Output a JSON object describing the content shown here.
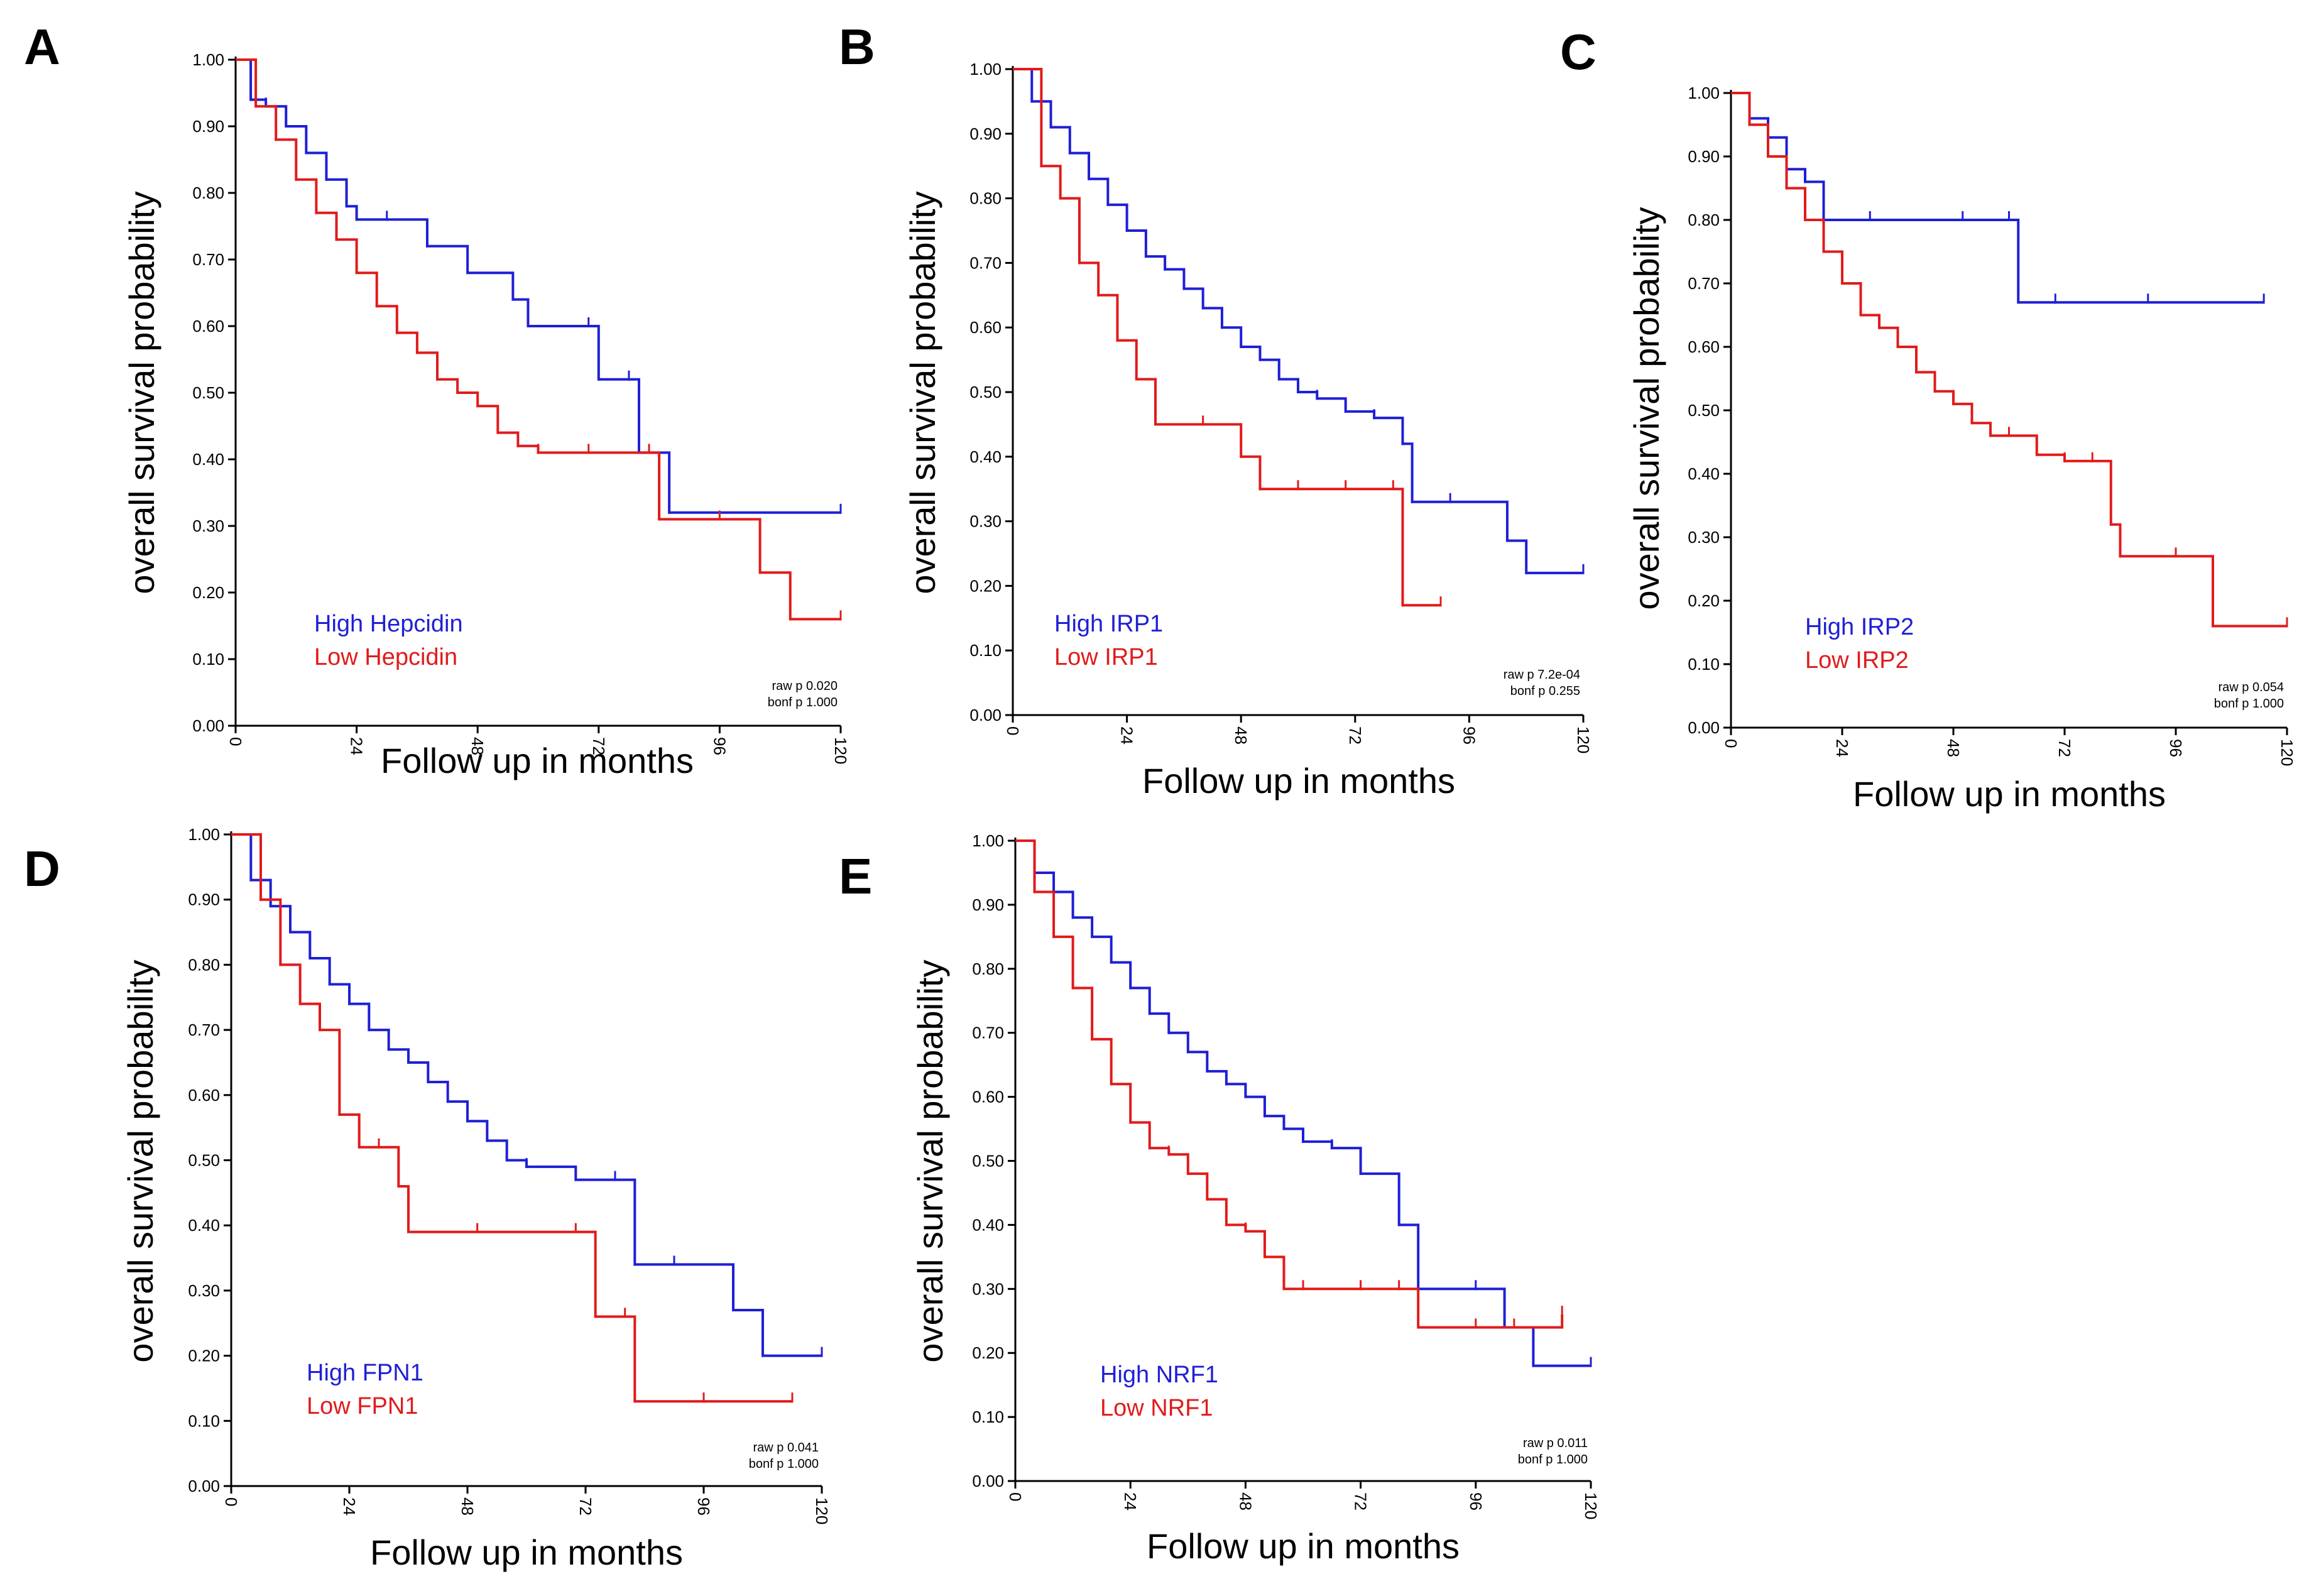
{
  "colors": {
    "high": "#1f1fd6",
    "low": "#e11b1b",
    "axis": "#000000"
  },
  "chart_data": [
    {
      "panel": "A",
      "type": "line",
      "subtype": "kaplan-meier",
      "xlabel": "Follow up in months",
      "ylabel": "overall survival probability",
      "xticks": [
        0,
        24,
        48,
        72,
        96,
        120
      ],
      "yticks": [
        "0.00",
        "0.10",
        "0.20",
        "0.30",
        "0.40",
        "0.50",
        "0.60",
        "0.70",
        "0.80",
        "0.90",
        "1.00"
      ],
      "xlim": [
        0,
        120
      ],
      "ylim": [
        0,
        1
      ],
      "legend": {
        "high": "High Hepcidin",
        "low": "Low Hepcidin"
      },
      "pvalues": {
        "raw": "raw p 0.020",
        "bonf": "bonf p 1.000"
      },
      "series": [
        {
          "name": "High Hepcidin",
          "color": "high",
          "x": [
            0,
            3,
            6,
            10,
            14,
            18,
            22,
            24,
            30,
            38,
            46,
            55,
            58,
            70,
            72,
            78,
            80,
            86,
            120
          ],
          "y": [
            1.0,
            0.94,
            0.93,
            0.9,
            0.86,
            0.82,
            0.78,
            0.76,
            0.76,
            0.72,
            0.68,
            0.64,
            0.6,
            0.6,
            0.52,
            0.52,
            0.41,
            0.32,
            0.32
          ]
        },
        {
          "name": "Low Hepcidin",
          "color": "low",
          "x": [
            0,
            4,
            8,
            12,
            16,
            20,
            24,
            28,
            32,
            36,
            40,
            44,
            48,
            52,
            56,
            60,
            70,
            82,
            84,
            96,
            104,
            110,
            120
          ],
          "y": [
            1.0,
            0.93,
            0.88,
            0.82,
            0.77,
            0.73,
            0.68,
            0.63,
            0.59,
            0.56,
            0.52,
            0.5,
            0.48,
            0.44,
            0.42,
            0.41,
            0.41,
            0.41,
            0.31,
            0.31,
            0.23,
            0.16,
            0.16
          ]
        }
      ]
    },
    {
      "panel": "B",
      "type": "line",
      "subtype": "kaplan-meier",
      "xlabel": "Follow up in months",
      "ylabel": "overall survival probability",
      "xticks": [
        0,
        24,
        48,
        72,
        96,
        120
      ],
      "yticks": [
        "0.00",
        "0.10",
        "0.20",
        "0.30",
        "0.40",
        "0.50",
        "0.60",
        "0.70",
        "0.80",
        "0.90",
        "1.00"
      ],
      "xlim": [
        0,
        120
      ],
      "ylim": [
        0,
        1
      ],
      "legend": {
        "high": "High IRP1",
        "low": "Low IRP1"
      },
      "pvalues": {
        "raw": "raw p 7.2e-04",
        "bonf": "bonf p 0.255"
      },
      "series": [
        {
          "name": "High IRP1",
          "color": "high",
          "x": [
            0,
            4,
            8,
            12,
            16,
            20,
            24,
            28,
            32,
            36,
            40,
            44,
            48,
            52,
            56,
            60,
            64,
            70,
            76,
            82,
            84,
            92,
            104,
            108,
            120
          ],
          "y": [
            1.0,
            0.95,
            0.91,
            0.87,
            0.83,
            0.79,
            0.75,
            0.71,
            0.69,
            0.66,
            0.63,
            0.6,
            0.57,
            0.55,
            0.52,
            0.5,
            0.49,
            0.47,
            0.46,
            0.42,
            0.33,
            0.33,
            0.27,
            0.22,
            0.22
          ]
        },
        {
          "name": "Low IRP1",
          "color": "low",
          "x": [
            0,
            6,
            10,
            14,
            18,
            22,
            26,
            30,
            40,
            48,
            52,
            60,
            70,
            80,
            82,
            90
          ],
          "y": [
            1.0,
            0.85,
            0.8,
            0.7,
            0.65,
            0.58,
            0.52,
            0.45,
            0.45,
            0.4,
            0.35,
            0.35,
            0.35,
            0.35,
            0.17,
            0.17
          ]
        }
      ]
    },
    {
      "panel": "C",
      "type": "line",
      "subtype": "kaplan-meier",
      "xlabel": "Follow up in months",
      "ylabel": "overall survival probability",
      "xticks": [
        0,
        24,
        48,
        72,
        96,
        120
      ],
      "yticks": [
        "0.00",
        "0.10",
        "0.20",
        "0.30",
        "0.40",
        "0.50",
        "0.60",
        "0.70",
        "0.80",
        "0.90",
        "1.00"
      ],
      "xlim": [
        0,
        120
      ],
      "ylim": [
        0,
        1
      ],
      "legend": {
        "high": "High IRP2",
        "low": "Low IRP2"
      },
      "pvalues": {
        "raw": "raw p 0.054",
        "bonf": "bonf p 1.000"
      },
      "series": [
        {
          "name": "High IRP2",
          "color": "high",
          "x": [
            0,
            4,
            8,
            12,
            16,
            20,
            30,
            50,
            60,
            62,
            70,
            90,
            115
          ],
          "y": [
            1.0,
            0.96,
            0.93,
            0.88,
            0.86,
            0.8,
            0.8,
            0.8,
            0.8,
            0.67,
            0.67,
            0.67,
            0.67
          ]
        },
        {
          "name": "Low IRP2",
          "color": "low",
          "x": [
            0,
            4,
            8,
            12,
            16,
            20,
            24,
            28,
            32,
            36,
            40,
            44,
            48,
            52,
            56,
            60,
            66,
            72,
            78,
            82,
            84,
            96,
            104,
            120
          ],
          "y": [
            1.0,
            0.95,
            0.9,
            0.85,
            0.8,
            0.75,
            0.7,
            0.65,
            0.63,
            0.6,
            0.56,
            0.53,
            0.51,
            0.48,
            0.46,
            0.46,
            0.43,
            0.42,
            0.42,
            0.32,
            0.27,
            0.27,
            0.16,
            0.16
          ]
        }
      ]
    },
    {
      "panel": "D",
      "type": "line",
      "subtype": "kaplan-meier",
      "xlabel": "Follow up in months",
      "ylabel": "overall survival probability",
      "xticks": [
        0,
        24,
        48,
        72,
        96,
        120
      ],
      "yticks": [
        "0.00",
        "0.10",
        "0.20",
        "0.30",
        "0.40",
        "0.50",
        "0.60",
        "0.70",
        "0.80",
        "0.90",
        "1.00"
      ],
      "xlim": [
        0,
        120
      ],
      "ylim": [
        0,
        1
      ],
      "legend": {
        "high": "High FPN1",
        "low": "Low FPN1"
      },
      "pvalues": {
        "raw": "raw p 0.041",
        "bonf": "bonf p 1.000"
      },
      "series": [
        {
          "name": "High FPN1",
          "color": "high",
          "x": [
            0,
            4,
            8,
            12,
            16,
            20,
            24,
            28,
            32,
            36,
            40,
            44,
            48,
            52,
            56,
            60,
            70,
            78,
            82,
            90,
            102,
            108,
            120
          ],
          "y": [
            1.0,
            0.93,
            0.89,
            0.85,
            0.81,
            0.77,
            0.74,
            0.7,
            0.67,
            0.65,
            0.62,
            0.59,
            0.56,
            0.53,
            0.5,
            0.49,
            0.47,
            0.47,
            0.34,
            0.34,
            0.27,
            0.2,
            0.2
          ]
        },
        {
          "name": "Low FPN1",
          "color": "low",
          "x": [
            0,
            6,
            10,
            14,
            18,
            22,
            26,
            30,
            34,
            36,
            50,
            70,
            74,
            80,
            82,
            96,
            114
          ],
          "y": [
            1.0,
            0.9,
            0.8,
            0.74,
            0.7,
            0.57,
            0.52,
            0.52,
            0.46,
            0.39,
            0.39,
            0.39,
            0.26,
            0.26,
            0.13,
            0.13,
            0.13
          ]
        }
      ]
    },
    {
      "panel": "E",
      "type": "line",
      "subtype": "kaplan-meier",
      "xlabel": "Follow up in months",
      "ylabel": "overall survival probability",
      "xticks": [
        0,
        24,
        48,
        72,
        96,
        120
      ],
      "yticks": [
        "0.00",
        "0.10",
        "0.20",
        "0.30",
        "0.40",
        "0.50",
        "0.60",
        "0.70",
        "0.80",
        "0.90",
        "1.00"
      ],
      "xlim": [
        0,
        120
      ],
      "ylim": [
        0,
        1
      ],
      "legend": {
        "high": "High NRF1",
        "low": "Low NRF1"
      },
      "pvalues": {
        "raw": "raw p 0.011",
        "bonf": "bonf p 1.000"
      },
      "series": [
        {
          "name": "High NRF1",
          "color": "high",
          "x": [
            0,
            4,
            8,
            12,
            16,
            20,
            24,
            28,
            32,
            36,
            40,
            44,
            48,
            52,
            56,
            60,
            66,
            72,
            80,
            84,
            96,
            102,
            108,
            120
          ],
          "y": [
            1.0,
            0.95,
            0.92,
            0.88,
            0.85,
            0.81,
            0.77,
            0.73,
            0.7,
            0.67,
            0.64,
            0.62,
            0.6,
            0.57,
            0.55,
            0.53,
            0.52,
            0.48,
            0.4,
            0.3,
            0.3,
            0.24,
            0.18,
            0.18
          ]
        },
        {
          "name": "Low NRF1",
          "color": "low",
          "x": [
            0,
            4,
            8,
            12,
            16,
            20,
            24,
            28,
            32,
            36,
            40,
            44,
            48,
            52,
            56,
            60,
            72,
            80,
            84,
            96,
            104,
            114
          ],
          "y": [
            1.0,
            0.92,
            0.85,
            0.77,
            0.69,
            0.62,
            0.56,
            0.52,
            0.51,
            0.48,
            0.44,
            0.4,
            0.39,
            0.35,
            0.3,
            0.3,
            0.3,
            0.3,
            0.24,
            0.24,
            0.24,
            0.26
          ]
        }
      ]
    }
  ]
}
